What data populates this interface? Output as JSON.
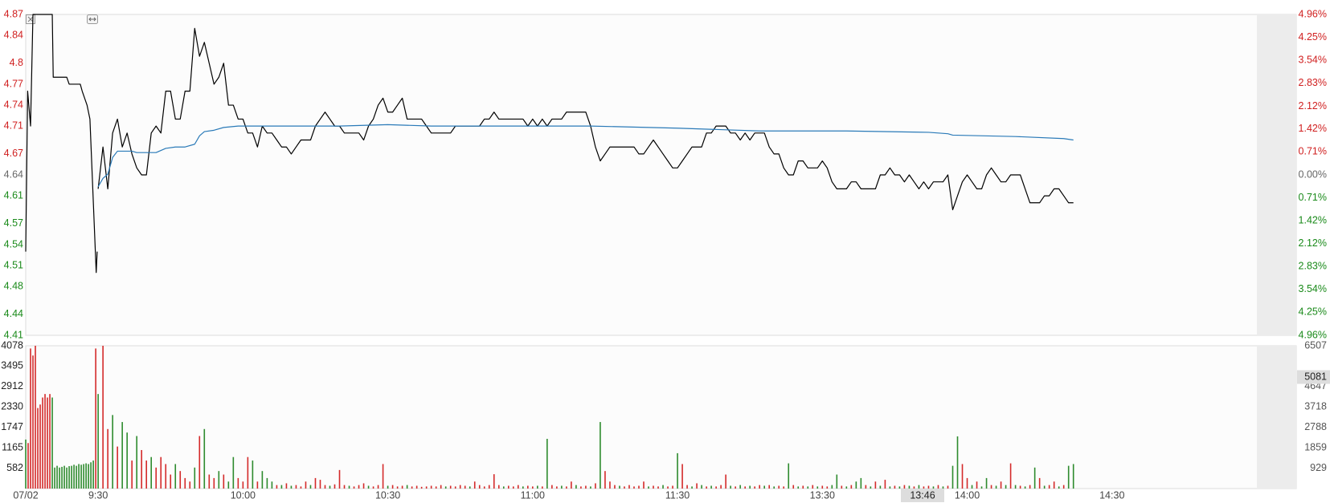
{
  "chart_data": [
    {
      "type": "line",
      "xlim": [
        -15,
        240
      ],
      "ylim": [
        4.41,
        4.87
      ],
      "yticks": [
        4.87,
        4.84,
        4.8,
        4.77,
        4.74,
        4.71,
        4.67,
        4.64,
        4.61,
        4.57,
        4.54,
        4.51,
        4.48,
        4.44,
        4.41
      ],
      "y2lim": [
        -4.96,
        4.96
      ],
      "y2ticks": [
        {
          "value": 4.96,
          "label": "4.96%"
        },
        {
          "value": 4.25,
          "label": "4.25%"
        },
        {
          "value": 3.54,
          "label": "3.54%"
        },
        {
          "value": 2.83,
          "label": "2.83%"
        },
        {
          "value": 2.12,
          "label": "2.12%"
        },
        {
          "value": 1.42,
          "label": "1.42%"
        },
        {
          "value": 0.71,
          "label": "0.71%"
        },
        {
          "value": 0,
          "label": "0.00%"
        },
        {
          "value": -0.71,
          "label": "0.71%"
        },
        {
          "value": -1.42,
          "label": "1.42%"
        },
        {
          "value": -2.12,
          "label": "2.12%"
        },
        {
          "value": -2.83,
          "label": "2.83%"
        },
        {
          "value": -3.54,
          "label": "3.54%"
        },
        {
          "value": -4.25,
          "label": "4.25%"
        },
        {
          "value": -4.96,
          "label": "4.96%"
        }
      ],
      "grid": true,
      "up_color": "#d01f1f",
      "down_color": "#1a8a1a",
      "series": [
        {
          "color": "#000000",
          "x": [
            -15,
            -14.6,
            -14,
            -13.5,
            -9.5,
            -9.3,
            -6.5,
            -6,
            -3.7,
            -3.3,
            -2.3,
            -1.7,
            -0.4,
            -0.2
          ],
          "values": [
            4.53,
            4.76,
            4.71,
            4.87,
            4.87,
            4.78,
            4.78,
            4.77,
            4.77,
            4.76,
            4.74,
            4.72,
            4.5,
            4.53
          ]
        },
        {
          "color": "#000000",
          "x": [
            0,
            1,
            2,
            3,
            4,
            5,
            6,
            7,
            8,
            9,
            10,
            11,
            12,
            13,
            14,
            15,
            16,
            17,
            18,
            19,
            20,
            21,
            22,
            23,
            24,
            25,
            26,
            27,
            28,
            29,
            30,
            31,
            32,
            33,
            34,
            35,
            36,
            37,
            38,
            39,
            40,
            41,
            42,
            43,
            44,
            45,
            46,
            47,
            48,
            49,
            50,
            51,
            52,
            53,
            54,
            55,
            56,
            57,
            58,
            59,
            60,
            61,
            62,
            63,
            64,
            65,
            66,
            67,
            68,
            69,
            70,
            71,
            72,
            73,
            74,
            75,
            76,
            77,
            78,
            79,
            80,
            81,
            82,
            83,
            84,
            85,
            86,
            87,
            88,
            89,
            90,
            91,
            92,
            93,
            94,
            95,
            96,
            97,
            98,
            99,
            100,
            101,
            102,
            103,
            104,
            105,
            106,
            107,
            108,
            109,
            110,
            111,
            112,
            113,
            114,
            115,
            116,
            117,
            118,
            119,
            120,
            121,
            122,
            123,
            124,
            125,
            126,
            127,
            128,
            129,
            130,
            131,
            132,
            133,
            134,
            135,
            136,
            137,
            138,
            139,
            140,
            141,
            142,
            143,
            144,
            145,
            146,
            147,
            148,
            149,
            150,
            151,
            152,
            153,
            154,
            155,
            156,
            157,
            158,
            159,
            160,
            161,
            162,
            163,
            164,
            165,
            166,
            167,
            168,
            169,
            170,
            171,
            172,
            173,
            174,
            175,
            176,
            177,
            178,
            179,
            180,
            181,
            182,
            183,
            184,
            185,
            186,
            187,
            188,
            189,
            190,
            191,
            192,
            193,
            194,
            195,
            196,
            197,
            198,
            199,
            200,
            201,
            202
          ],
          "values": [
            4.62,
            4.68,
            4.62,
            4.7,
            4.72,
            4.68,
            4.7,
            4.67,
            4.65,
            4.64,
            4.64,
            4.7,
            4.71,
            4.7,
            4.76,
            4.76,
            4.72,
            4.72,
            4.76,
            4.76,
            4.85,
            4.81,
            4.83,
            4.8,
            4.77,
            4.78,
            4.8,
            4.74,
            4.74,
            4.72,
            4.72,
            4.7,
            4.7,
            4.68,
            4.71,
            4.7,
            4.7,
            4.69,
            4.68,
            4.68,
            4.67,
            4.68,
            4.69,
            4.69,
            4.69,
            4.71,
            4.72,
            4.73,
            4.72,
            4.71,
            4.71,
            4.7,
            4.7,
            4.7,
            4.7,
            4.69,
            4.71,
            4.72,
            4.74,
            4.75,
            4.73,
            4.73,
            4.74,
            4.75,
            4.72,
            4.72,
            4.72,
            4.72,
            4.71,
            4.7,
            4.7,
            4.7,
            4.7,
            4.7,
            4.71,
            4.71,
            4.71,
            4.71,
            4.71,
            4.71,
            4.72,
            4.72,
            4.73,
            4.72,
            4.72,
            4.72,
            4.72,
            4.72,
            4.72,
            4.71,
            4.72,
            4.71,
            4.72,
            4.71,
            4.72,
            4.72,
            4.72,
            4.73,
            4.73,
            4.73,
            4.73,
            4.73,
            4.71,
            4.68,
            4.66,
            4.67,
            4.68,
            4.68,
            4.68,
            4.68,
            4.68,
            4.68,
            4.67,
            4.67,
            4.68,
            4.69,
            4.68,
            4.67,
            4.66,
            4.65,
            4.65,
            4.66,
            4.67,
            4.68,
            4.68,
            4.68,
            4.7,
            4.7,
            4.71,
            4.71,
            4.71,
            4.7,
            4.7,
            4.69,
            4.7,
            4.69,
            4.7,
            4.7,
            4.7,
            4.68,
            4.67,
            4.67,
            4.65,
            4.64,
            4.64,
            4.66,
            4.66,
            4.65,
            4.65,
            4.65,
            4.66,
            4.65,
            4.63,
            4.62,
            4.62,
            4.62,
            4.63,
            4.63,
            4.62,
            4.62,
            4.62,
            4.62,
            4.64,
            4.64,
            4.65,
            4.64,
            4.64,
            4.63,
            4.64,
            4.63,
            4.62,
            4.63,
            4.62,
            4.63,
            4.63,
            4.63,
            4.64,
            4.59,
            4.61,
            4.63,
            4.64,
            4.63,
            4.62,
            4.62,
            4.64,
            4.65,
            4.64,
            4.63,
            4.63,
            4.64,
            4.64,
            4.64,
            4.62,
            4.6,
            4.6,
            4.6,
            4.61,
            4.61,
            4.62,
            4.62,
            4.61,
            4.6,
            4.6
          ]
        },
        {
          "color": "#2a7ab8",
          "x": [
            0,
            1,
            2,
            3,
            4,
            5,
            6,
            7,
            8,
            10,
            12,
            14,
            16,
            18,
            20,
            21,
            22,
            24,
            26,
            29,
            32,
            41,
            50,
            60,
            69,
            85,
            102,
            120,
            137,
            155,
            172,
            176,
            177,
            190,
            200,
            202
          ],
          "values": [
            4.623,
            4.635,
            4.641,
            4.665,
            4.674,
            4.674,
            4.674,
            4.674,
            4.672,
            4.672,
            4.672,
            4.678,
            4.68,
            4.68,
            4.684,
            4.696,
            4.702,
            4.704,
            4.708,
            4.71,
            4.71,
            4.71,
            4.71,
            4.712,
            4.71,
            4.71,
            4.71,
            4.707,
            4.703,
            4.703,
            4.701,
            4.699,
            4.697,
            4.695,
            4.692,
            4.69
          ]
        }
      ]
    },
    {
      "type": "bar",
      "xlim": [
        -15,
        240
      ],
      "xticks": [
        {
          "value": -15,
          "label": "07/02"
        },
        {
          "value": 0,
          "label": "9:30"
        },
        {
          "value": 30,
          "label": "10:00"
        },
        {
          "value": 60,
          "label": "10:30"
        },
        {
          "value": 90,
          "label": "11:00"
        },
        {
          "value": 120,
          "label": "11:30"
        },
        {
          "value": 150,
          "label": "13:30"
        },
        {
          "value": 180,
          "label": "14:00"
        },
        {
          "value": 210,
          "label": "14:30"
        }
      ],
      "ylim": [
        0,
        4078
      ],
      "yticks": [
        582,
        1165,
        1747,
        2330,
        2912,
        3495,
        4078
      ],
      "y2lim": [
        0,
        6507
      ],
      "y2ticks": [
        929,
        1859,
        2788,
        3718,
        4647,
        6507
      ],
      "grid": true,
      "crosshair": {
        "x_label": "13:46",
        "y_value": 5081
      },
      "series": [
        {
          "color": "#d42a2a",
          "x": [
            -14.5,
            -14,
            -13.5,
            -13,
            -12.5,
            -12,
            -11.5,
            -11,
            -10.5,
            -10,
            -0.5,
            1,
            2,
            4,
            7,
            9,
            10,
            12,
            13,
            14,
            15,
            17,
            18,
            19,
            21,
            23,
            24,
            26,
            29,
            30,
            31,
            33,
            37,
            39,
            41,
            42,
            43,
            45,
            46,
            47,
            49,
            50,
            51,
            53,
            54,
            55,
            57,
            58,
            59,
            61,
            62,
            63,
            65,
            66,
            67,
            68,
            69,
            70,
            71,
            73,
            74,
            75,
            76,
            78,
            79,
            80,
            81,
            82,
            83,
            85,
            86,
            87,
            89,
            90,
            92,
            94,
            95,
            97,
            98,
            100,
            101,
            103,
            105,
            106,
            107,
            109,
            110,
            111,
            112,
            113,
            115,
            116,
            118,
            119,
            121,
            122,
            124,
            126,
            128,
            129,
            130,
            132,
            134,
            136,
            137,
            139,
            141,
            142,
            144,
            146,
            148,
            150,
            151,
            154,
            156,
            159,
            161,
            163,
            165,
            167,
            169,
            171,
            172,
            174,
            176,
            179,
            180,
            182,
            185,
            187,
            189,
            191,
            193,
            195,
            197,
            198,
            200
          ],
          "values": [
            1300,
            4000,
            3800,
            4078,
            2300,
            2400,
            2600,
            2700,
            2600,
            2700,
            4000,
            4078,
            1700,
            1200,
            800,
            1100,
            800,
            600,
            900,
            700,
            400,
            500,
            300,
            200,
            1500,
            400,
            300,
            400,
            300,
            200,
            900,
            200,
            100,
            150,
            100,
            60,
            200,
            300,
            250,
            100,
            120,
            530,
            100,
            60,
            100,
            150,
            60,
            100,
            700,
            100,
            60,
            80,
            60,
            80,
            50,
            60,
            80,
            60,
            100,
            80,
            60,
            100,
            80,
            200,
            100,
            60,
            100,
            410,
            100,
            80,
            60,
            100,
            80,
            60,
            60,
            100,
            60,
            60,
            200,
            60,
            80,
            150,
            500,
            200,
            100,
            60,
            100,
            60,
            80,
            200,
            80,
            60,
            60,
            80,
            700,
            100,
            150,
            60,
            60,
            100,
            400,
            60,
            60,
            60,
            100,
            100,
            80,
            60,
            100,
            80,
            100,
            80,
            60,
            80,
            100,
            100,
            200,
            250,
            80,
            100,
            60,
            60,
            80,
            100,
            80,
            700,
            300,
            200,
            100,
            200,
            720,
            80,
            100,
            300,
            100,
            200,
            100
          ]
        },
        {
          "color": "#2e8b2e",
          "x": [
            -15,
            -9.5,
            -9,
            -8.5,
            -8,
            -7.5,
            -7,
            -6.5,
            -6,
            -5.5,
            -5,
            -4.5,
            -4,
            -3.5,
            -3,
            -2.5,
            -2,
            -1.5,
            -1,
            0,
            3,
            5,
            6,
            8,
            11,
            16,
            20,
            22,
            25,
            27,
            28,
            32,
            34,
            35,
            36,
            38,
            40,
            44,
            48,
            52,
            56,
            60,
            64,
            72,
            77,
            84,
            88,
            91,
            93,
            96,
            99,
            102,
            104,
            108,
            114,
            117,
            120,
            123,
            125,
            127,
            131,
            133,
            135,
            138,
            140,
            143,
            145,
            147,
            149,
            152,
            153,
            155,
            157,
            158,
            160,
            162,
            164,
            166,
            168,
            170,
            173,
            175,
            177,
            178,
            181,
            183,
            184,
            186,
            188,
            190,
            192,
            194,
            196,
            199,
            201,
            202
          ],
          "values": [
            1400,
            2600,
            600,
            650,
            600,
            620,
            650,
            600,
            640,
            650,
            680,
            650,
            700,
            680,
            700,
            720,
            700,
            750,
            800,
            2700,
            2100,
            1900,
            1600,
            1500,
            900,
            700,
            600,
            1700,
            500,
            200,
            900,
            800,
            500,
            300,
            200,
            100,
            80,
            100,
            80,
            80,
            80,
            80,
            100,
            60,
            60,
            60,
            60,
            80,
            1420,
            80,
            100,
            60,
            1900,
            80,
            60,
            100,
            1010,
            60,
            100,
            80,
            80,
            100,
            80,
            80,
            60,
            720,
            60,
            60,
            60,
            100,
            400,
            60,
            200,
            300,
            60,
            80,
            60,
            60,
            80,
            100,
            60,
            60,
            650,
            1490,
            100,
            60,
            300,
            80,
            100,
            100,
            60,
            600,
            80,
            60,
            650,
            700
          ]
        }
      ]
    }
  ]
}
